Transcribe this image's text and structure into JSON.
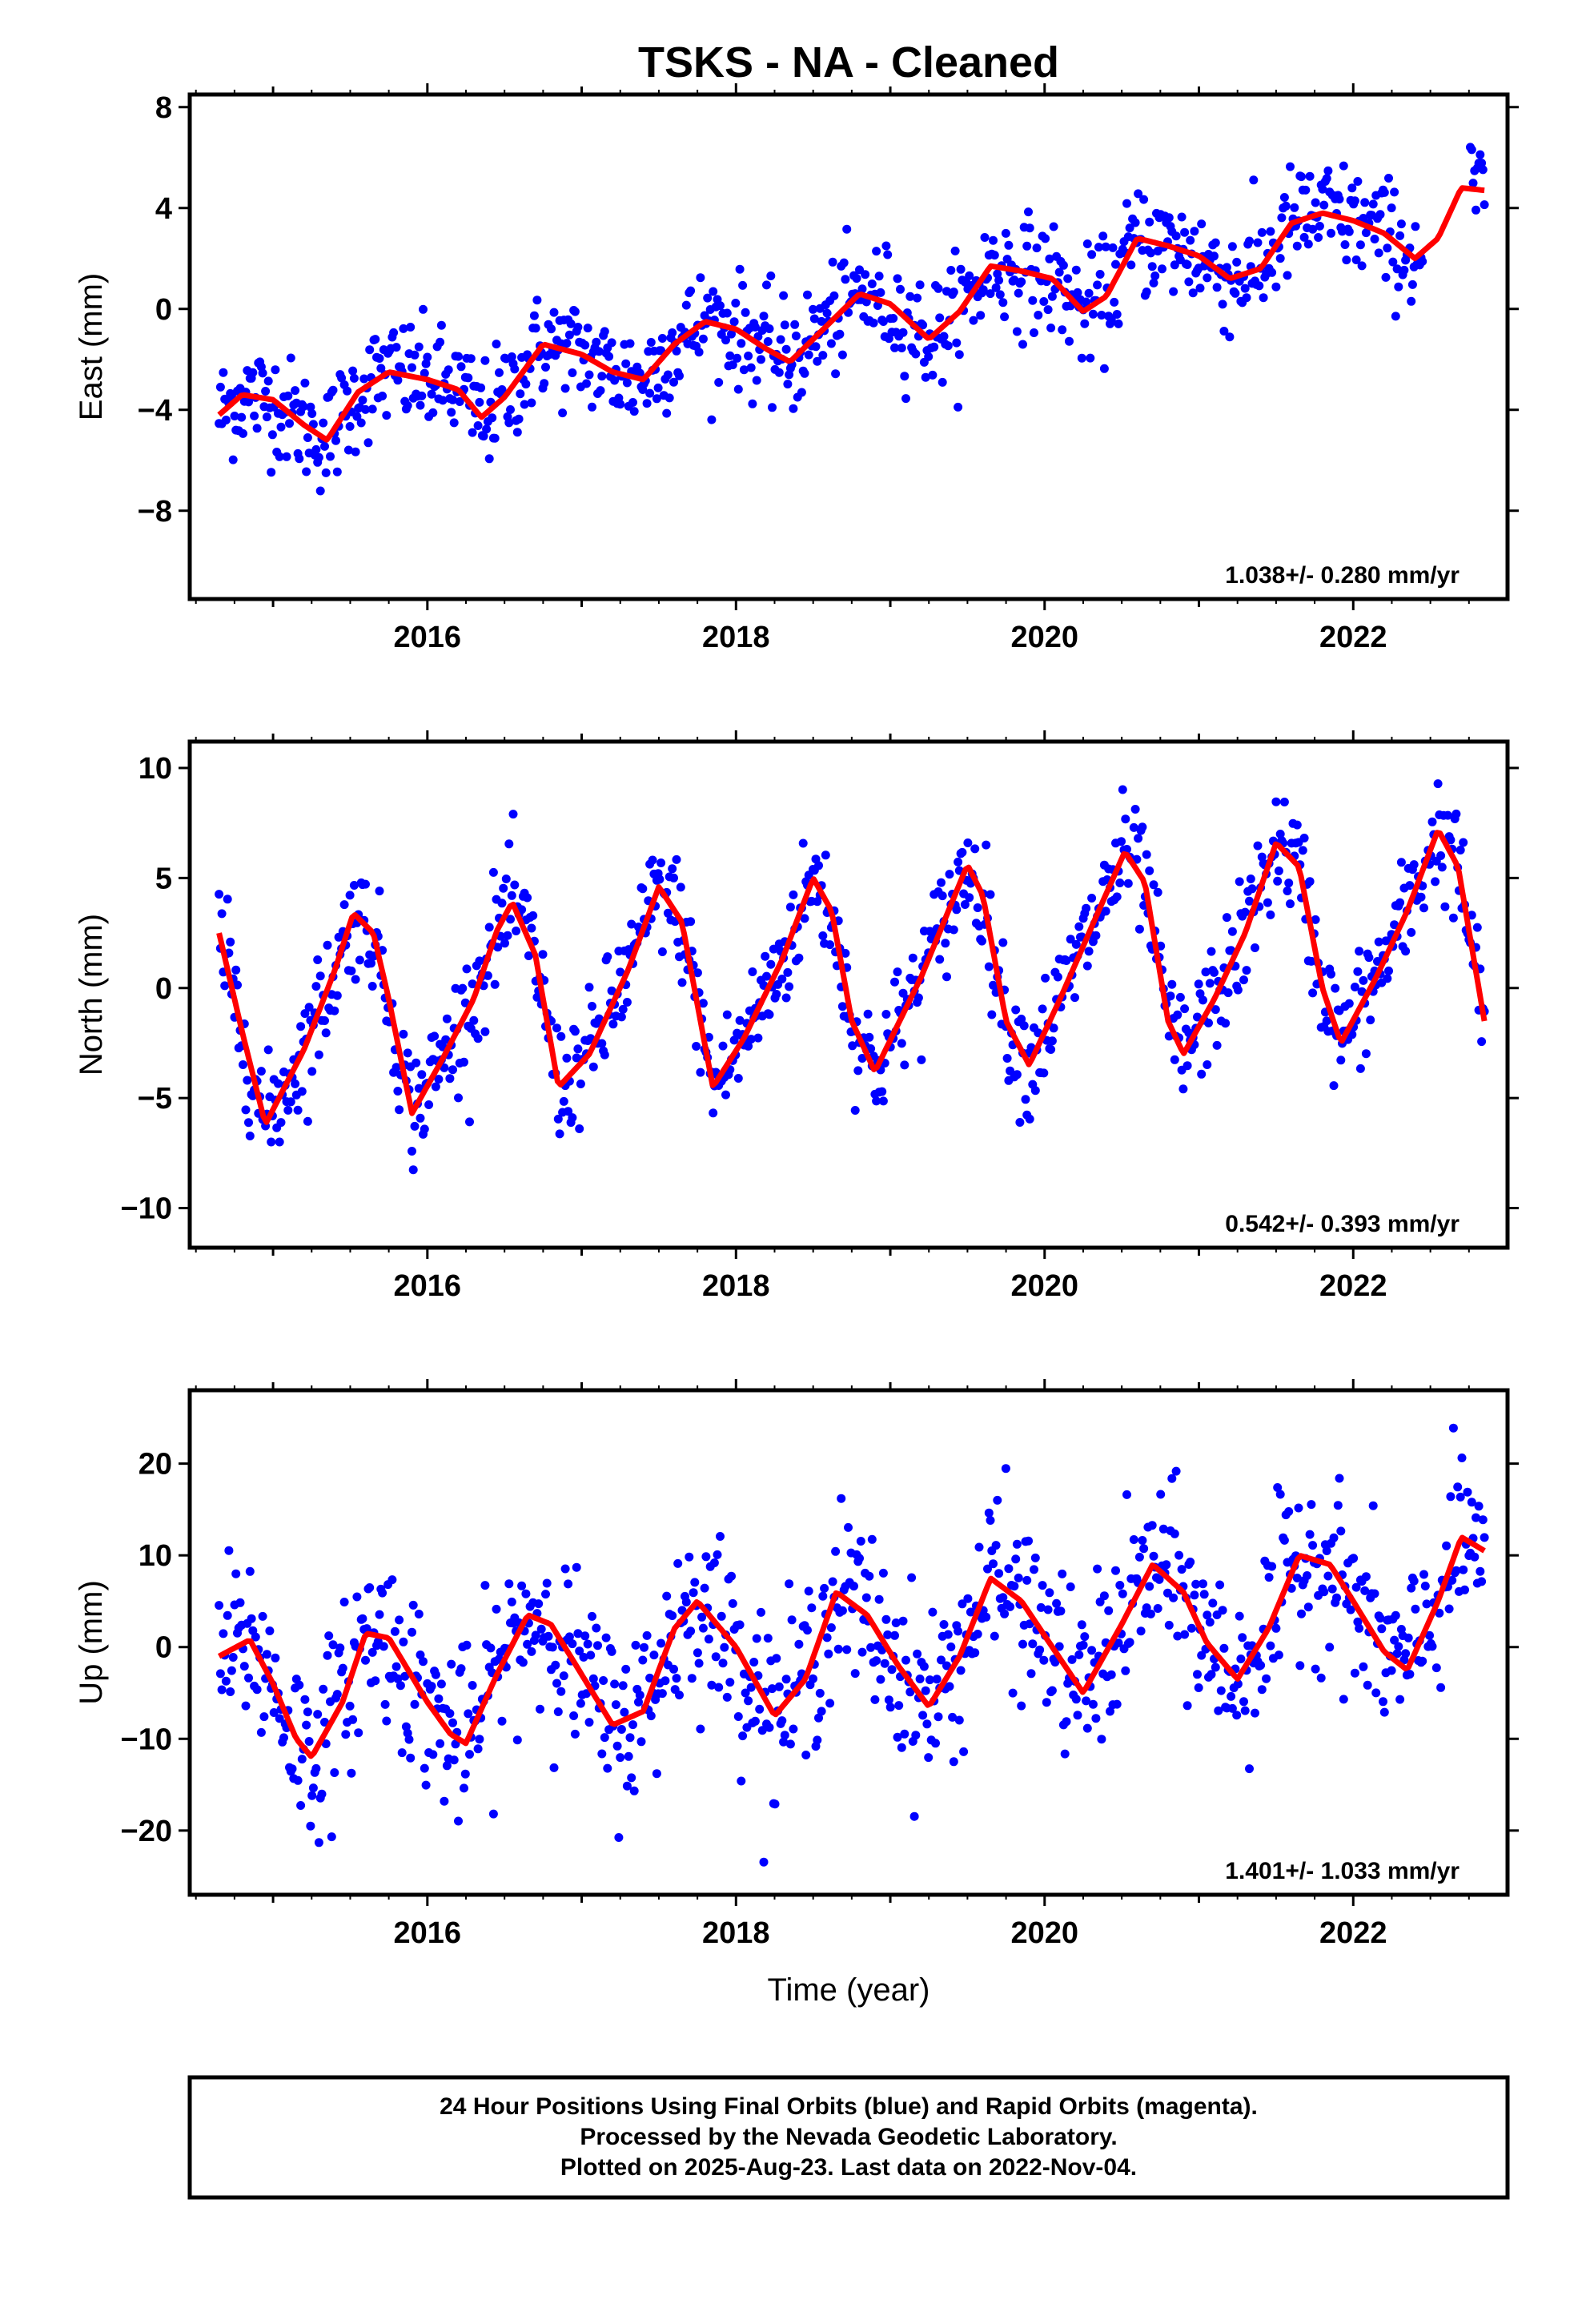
{
  "title": "TSKS  - NA - Cleaned",
  "xlabel": "Time (year)",
  "footer": {
    "lines": [
      "24 Hour Positions Using Final Orbits (blue) and Rapid Orbits (magenta).",
      "Processed by the Nevada Geodetic Laboratory.",
      "Plotted on 2025-Aug-23. Last data on 2022-Nov-04."
    ]
  },
  "colors": {
    "points": "#0000ff",
    "model": "#ff0000",
    "frame": "#000000"
  },
  "chart_data": [
    {
      "type": "scatter",
      "ylabel": "East (mm)",
      "rate_text": "1.038+/- 0.280 mm/yr",
      "xlim": [
        2014.46,
        2023.0
      ],
      "ylim": [
        -11.5,
        8.5
      ],
      "xticks": [
        2016,
        2018,
        2020,
        2022
      ],
      "yticks": [
        -8,
        -4,
        0,
        4,
        8
      ],
      "yticklabels": [
        "−8",
        "−4",
        "0",
        "4",
        "8"
      ],
      "model_line": {
        "x": [
          2014.65,
          2014.8,
          2015.0,
          2015.2,
          2015.35,
          2015.55,
          2015.75,
          2016.0,
          2016.2,
          2016.35,
          2016.5,
          2016.75,
          2017.0,
          2017.2,
          2017.4,
          2017.6,
          2017.8,
          2018.0,
          2018.2,
          2018.35,
          2018.55,
          2018.8,
          2019.0,
          2019.25,
          2019.45,
          2019.65,
          2019.85,
          2020.05,
          2020.25,
          2020.4,
          2020.6,
          2020.8,
          2021.0,
          2021.2,
          2021.4,
          2021.6,
          2021.8,
          2022.0,
          2022.2,
          2022.4,
          2022.55,
          2022.7,
          2022.85
        ],
        "y": [
          -4.2,
          -3.4,
          -3.6,
          -4.6,
          -5.2,
          -3.3,
          -2.5,
          -2.8,
          -3.2,
          -4.3,
          -3.5,
          -1.4,
          -1.8,
          -2.5,
          -2.8,
          -1.4,
          -0.5,
          -0.8,
          -1.6,
          -2.1,
          -0.9,
          0.6,
          0.2,
          -1.2,
          -0.1,
          1.7,
          1.5,
          1.2,
          -0.1,
          0.5,
          2.8,
          2.5,
          2.1,
          1.2,
          1.6,
          3.4,
          3.8,
          3.5,
          3.0,
          2.0,
          2.8,
          4.8,
          4.7
        ]
      }
    },
    {
      "type": "scatter",
      "ylabel": "North (mm)",
      "rate_text": "0.542+/- 0.393 mm/yr",
      "xlim": [
        2014.46,
        2023.0
      ],
      "ylim": [
        -11.8,
        11.2
      ],
      "xticks": [
        2016,
        2018,
        2020,
        2022
      ],
      "yticks": [
        -10,
        -5,
        0,
        5,
        10
      ],
      "yticklabels": [
        "−10",
        "−5",
        "0",
        "5",
        "10"
      ],
      "model_line": {
        "x": [
          2014.65,
          2014.8,
          2014.95,
          2015.2,
          2015.4,
          2015.52,
          2015.65,
          2015.75,
          2015.9,
          2016.1,
          2016.3,
          2016.45,
          2016.55,
          2016.7,
          2016.85,
          2017.05,
          2017.3,
          2017.5,
          2017.65,
          2017.85,
          2018.05,
          2018.3,
          2018.5,
          2018.62,
          2018.75,
          2018.9,
          2019.2,
          2019.5,
          2019.6,
          2019.75,
          2019.9,
          2020.1,
          2020.35,
          2020.52,
          2020.65,
          2020.8,
          2020.9,
          2021.1,
          2021.3,
          2021.5,
          2021.65,
          2021.8,
          2021.92,
          2022.15,
          2022.35,
          2022.55,
          2022.68,
          2022.85
        ],
        "y": [
          2.5,
          -2.0,
          -6.2,
          -2.8,
          0.8,
          3.4,
          2.5,
          -0.5,
          -5.7,
          -3.2,
          -0.5,
          2.6,
          3.9,
          1.5,
          -4.5,
          -3.0,
          0.8,
          4.6,
          3.0,
          -4.5,
          -2.3,
          1.3,
          5.0,
          3.5,
          -1.5,
          -3.8,
          0.5,
          5.6,
          4.2,
          -1.5,
          -3.5,
          -0.5,
          3.5,
          6.2,
          4.8,
          -1.5,
          -3.0,
          -0.5,
          2.5,
          6.6,
          5.5,
          0.0,
          -2.5,
          0.5,
          3.5,
          7.2,
          5.5,
          -1.5
        ]
      }
    },
    {
      "type": "scatter",
      "ylabel": "Up (mm)",
      "rate_text": "1.401+/- 1.033 mm/yr",
      "xlim": [
        2014.46,
        2023.0
      ],
      "ylim": [
        -27.0,
        28.0
      ],
      "xticks": [
        2016,
        2018,
        2020,
        2022
      ],
      "yticks": [
        -20,
        -10,
        0,
        10,
        20
      ],
      "yticklabels": [
        "−20",
        "−10",
        "0",
        "10",
        "20"
      ],
      "model_line": {
        "x": [
          2014.65,
          2014.85,
          2015.0,
          2015.15,
          2015.25,
          2015.45,
          2015.6,
          2015.75,
          2016.0,
          2016.15,
          2016.25,
          2016.45,
          2016.65,
          2016.8,
          2017.0,
          2017.2,
          2017.4,
          2017.6,
          2017.75,
          2018.0,
          2018.25,
          2018.45,
          2018.65,
          2018.85,
          2019.05,
          2019.25,
          2019.45,
          2019.65,
          2019.85,
          2020.05,
          2020.25,
          2020.5,
          2020.7,
          2020.9,
          2021.05,
          2021.25,
          2021.45,
          2021.65,
          2021.85,
          2022.0,
          2022.2,
          2022.35,
          2022.55,
          2022.7,
          2022.85
        ],
        "y": [
          -1.0,
          0.8,
          -4.0,
          -10.0,
          -12.0,
          -6.0,
          1.5,
          1.0,
          -6.0,
          -9.5,
          -10.5,
          -3.0,
          3.5,
          2.5,
          -3.0,
          -8.5,
          -7.0,
          2.0,
          5.0,
          0.0,
          -7.5,
          -3.5,
          6.0,
          3.5,
          -2.0,
          -6.5,
          -1.0,
          7.5,
          5.0,
          0.0,
          -5.0,
          2.5,
          9.0,
          6.0,
          0.5,
          -3.5,
          2.0,
          10.0,
          9.0,
          5.0,
          -0.5,
          -2.5,
          5.0,
          12.0,
          10.5
        ]
      }
    }
  ]
}
